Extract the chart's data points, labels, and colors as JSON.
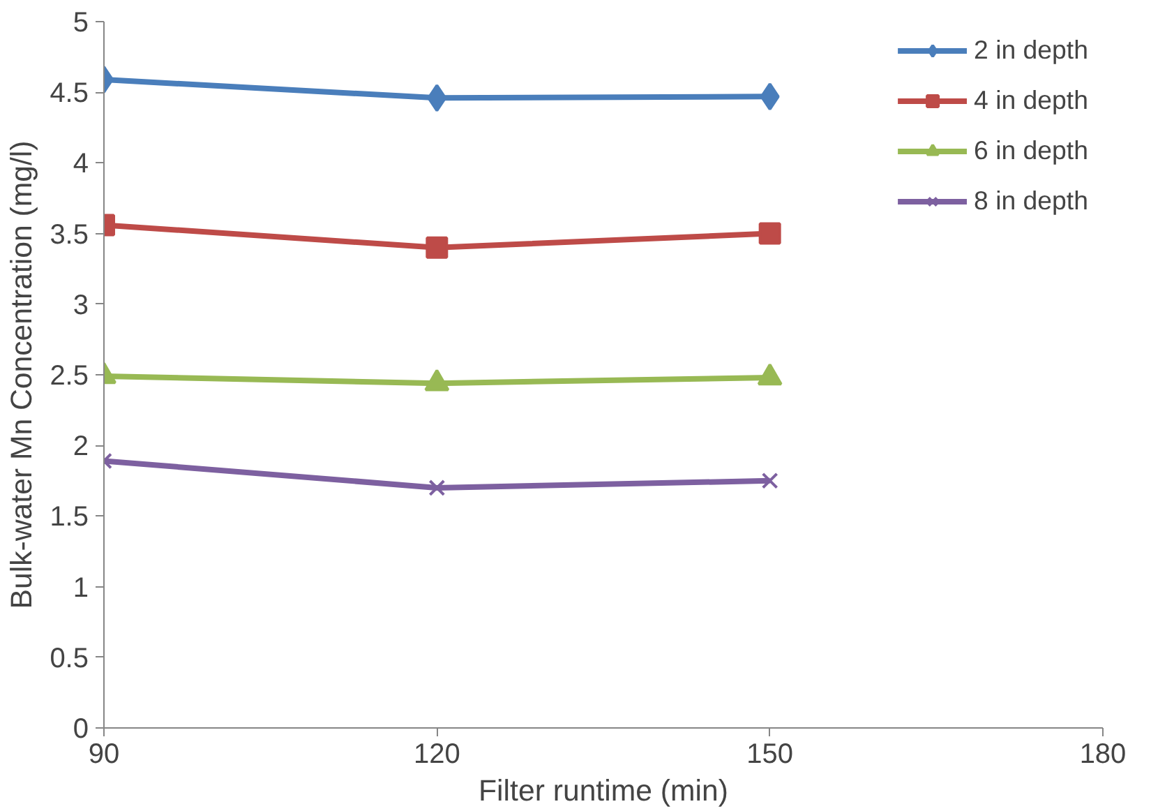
{
  "chart_data": {
    "type": "line",
    "xlabel": "Filter runtime (min)",
    "ylabel": "Bulk-water Mn Concentration (mg/l)",
    "x": [
      90,
      120,
      150
    ],
    "xlim": [
      90,
      180
    ],
    "xticks": [
      90,
      120,
      150,
      180
    ],
    "ylim": [
      0,
      5
    ],
    "yticks": [
      0,
      0.5,
      1,
      1.5,
      2,
      2.5,
      3,
      3.5,
      4,
      4.5,
      5
    ],
    "grid": false,
    "legend": "top right",
    "line_style": "solid",
    "series": [
      {
        "name": "2 in depth",
        "color": "#4a7ebb",
        "marker": "diamond",
        "values": [
          4.59,
          4.46,
          4.47
        ]
      },
      {
        "name": "4 in depth",
        "color": "#be4b48",
        "marker": "square",
        "values": [
          3.56,
          3.4,
          3.5
        ]
      },
      {
        "name": "6 in depth",
        "color": "#98b954",
        "marker": "triangle",
        "values": [
          2.49,
          2.44,
          2.48
        ]
      },
      {
        "name": "8 in depth",
        "color": "#7d60a0",
        "marker": "x",
        "values": [
          1.89,
          1.7,
          1.75
        ]
      }
    ]
  }
}
